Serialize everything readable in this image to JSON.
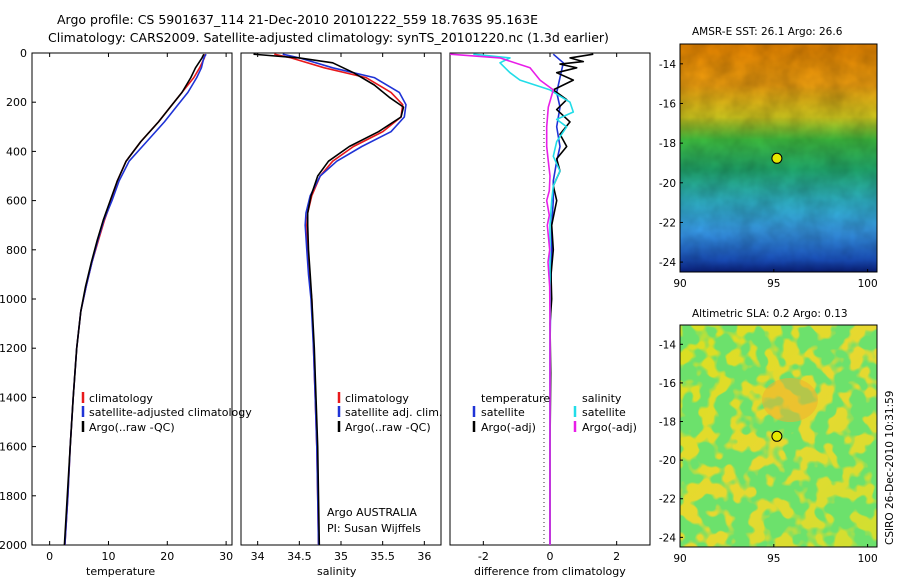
{
  "header": {
    "line1": "Argo profile: CS 5901637_114 21-Dec-2010 20101222_559 18.763S 95.163E",
    "line2": "Climatology: CARS2009. Satellite-adjusted climatology: synTS_20101220.nc (1.3d earlier)"
  },
  "side_label": "CSIRO 26-Dec-2010 10:31:59",
  "colors": {
    "climatology": "#e8191c",
    "satellite": "#1f33d6",
    "argo": "#000000",
    "sat_salinity": "#22dde8",
    "argo_salinity": "#e81ee8"
  },
  "chart_data": [
    {
      "type": "line",
      "id": "temperature",
      "xlabel": "temperature",
      "ylabel": "",
      "xlim": [
        -3,
        31
      ],
      "ylim": [
        2000,
        0
      ],
      "yreverse": true,
      "xticks": [
        0,
        10,
        20,
        30
      ],
      "xticklabels": [
        "0",
        "10",
        "20",
        "30"
      ],
      "yticks": [
        0,
        200,
        400,
        600,
        800,
        1000,
        1200,
        1400,
        1600,
        1800,
        2000
      ],
      "yticklabels": [
        "0",
        "200",
        "400",
        "600",
        "800",
        "1000",
        "1200",
        "1400",
        "1600",
        "1800",
        "2000"
      ],
      "legend": {
        "position": "middle-right",
        "entries": [
          "climatology",
          "satellite-adjusted climatology",
          "Argo(..raw -QC)"
        ]
      },
      "series": [
        {
          "name": "climatology",
          "color": "#e8191c",
          "points": [
            [
              26.4,
              5
            ],
            [
              26.3,
              20
            ],
            [
              25.5,
              60
            ],
            [
              24.5,
              100
            ],
            [
              22.5,
              160
            ],
            [
              20.5,
              220
            ],
            [
              18.5,
              280
            ],
            [
              15.5,
              360
            ],
            [
              13,
              440
            ],
            [
              11.5,
              520
            ],
            [
              10.5,
              600
            ],
            [
              9.3,
              680
            ],
            [
              8.3,
              760
            ],
            [
              7.2,
              850
            ],
            [
              6.2,
              950
            ],
            [
              5.3,
              1050
            ],
            [
              4.6,
              1200
            ],
            [
              4,
              1400
            ],
            [
              3.5,
              1600
            ],
            [
              3.1,
              1800
            ],
            [
              2.6,
              2000
            ]
          ]
        },
        {
          "name": "satellite",
          "color": "#1f33d6",
          "points": [
            [
              26.6,
              5
            ],
            [
              26.2,
              20
            ],
            [
              25.8,
              60
            ],
            [
              25,
              100
            ],
            [
              23.5,
              160
            ],
            [
              21.5,
              220
            ],
            [
              19.5,
              280
            ],
            [
              16.5,
              360
            ],
            [
              13.5,
              440
            ],
            [
              11.8,
              520
            ],
            [
              10.6,
              600
            ],
            [
              9.2,
              680
            ],
            [
              8.2,
              760
            ],
            [
              7.2,
              850
            ],
            [
              6.2,
              950
            ],
            [
              5.3,
              1050
            ],
            [
              4.6,
              1200
            ],
            [
              4,
              1400
            ],
            [
              3.5,
              1600
            ],
            [
              3.1,
              1800
            ],
            [
              2.6,
              2000
            ]
          ]
        },
        {
          "name": "Argo",
          "color": "#000000",
          "points": [
            [
              26.2,
              5
            ],
            [
              25.9,
              20
            ],
            [
              24.8,
              60
            ],
            [
              24,
              100
            ],
            [
              22.5,
              160
            ],
            [
              20.5,
              220
            ],
            [
              18.5,
              280
            ],
            [
              15.5,
              360
            ],
            [
              13,
              440
            ],
            [
              11.5,
              520
            ],
            [
              10.3,
              600
            ],
            [
              9.1,
              680
            ],
            [
              8.1,
              760
            ],
            [
              7.1,
              850
            ],
            [
              6.1,
              950
            ],
            [
              5.3,
              1050
            ],
            [
              4.6,
              1200
            ],
            [
              4,
              1400
            ],
            [
              3.5,
              1600
            ],
            [
              3,
              1800
            ],
            [
              2.5,
              2000
            ]
          ]
        }
      ]
    },
    {
      "type": "line",
      "id": "salinity",
      "xlabel": "salinity",
      "xlim": [
        33.8,
        36.2
      ],
      "ylim": [
        2000,
        0
      ],
      "yreverse": true,
      "xticks": [
        34,
        34.5,
        35,
        35.5,
        36
      ],
      "xticklabels": [
        "34",
        "34.5",
        "35",
        "35.5",
        "36"
      ],
      "legend": {
        "position": "middle-right",
        "entries": [
          "climatology",
          "satellite adj. clim.",
          "Argo(..raw -QC)"
        ]
      },
      "annotation": [
        "Argo AUSTRALIA",
        "PI: Susan Wijffels"
      ],
      "series": [
        {
          "name": "climatology",
          "color": "#e8191c",
          "points": [
            [
              34.2,
              5
            ],
            [
              34.4,
              20
            ],
            [
              34.8,
              60
            ],
            [
              35.3,
              100
            ],
            [
              35.6,
              160
            ],
            [
              35.74,
              210
            ],
            [
              35.72,
              260
            ],
            [
              35.5,
              320
            ],
            [
              35.15,
              380
            ],
            [
              34.9,
              440
            ],
            [
              34.75,
              500
            ],
            [
              34.65,
              580
            ],
            [
              34.6,
              650
            ],
            [
              34.59,
              700
            ],
            [
              34.6,
              800
            ],
            [
              34.62,
              900
            ],
            [
              34.65,
              1000
            ],
            [
              34.67,
              1200
            ],
            [
              34.69,
              1400
            ],
            [
              34.71,
              1600
            ],
            [
              34.72,
              1800
            ],
            [
              34.73,
              2000
            ]
          ]
        },
        {
          "name": "satellite",
          "color": "#1f33d6",
          "points": [
            [
              34.3,
              5
            ],
            [
              34.5,
              20
            ],
            [
              34.9,
              60
            ],
            [
              35.4,
              100
            ],
            [
              35.7,
              160
            ],
            [
              35.78,
              210
            ],
            [
              35.76,
              260
            ],
            [
              35.6,
              320
            ],
            [
              35.25,
              380
            ],
            [
              34.95,
              440
            ],
            [
              34.75,
              500
            ],
            [
              34.63,
              580
            ],
            [
              34.58,
              650
            ],
            [
              34.57,
              700
            ],
            [
              34.59,
              800
            ],
            [
              34.61,
              900
            ],
            [
              34.64,
              1000
            ],
            [
              34.67,
              1200
            ],
            [
              34.69,
              1400
            ],
            [
              34.71,
              1600
            ],
            [
              34.72,
              1800
            ],
            [
              34.73,
              2000
            ]
          ]
        },
        {
          "name": "Argo",
          "color": "#000000",
          "points": [
            [
              33.95,
              5
            ],
            [
              34.5,
              20
            ],
            [
              34.9,
              40
            ],
            [
              35.15,
              80
            ],
            [
              35.4,
              130
            ],
            [
              35.58,
              180
            ],
            [
              35.75,
              220
            ],
            [
              35.72,
              260
            ],
            [
              35.45,
              320
            ],
            [
              35.1,
              380
            ],
            [
              34.85,
              440
            ],
            [
              34.72,
              500
            ],
            [
              34.64,
              580
            ],
            [
              34.6,
              650
            ],
            [
              34.6,
              700
            ],
            [
              34.61,
              800
            ],
            [
              34.63,
              900
            ],
            [
              34.65,
              1000
            ],
            [
              34.68,
              1200
            ],
            [
              34.7,
              1400
            ],
            [
              34.72,
              1600
            ],
            [
              34.73,
              1800
            ],
            [
              34.74,
              2000
            ]
          ]
        }
      ]
    },
    {
      "type": "line",
      "id": "difference",
      "xlabel": "difference from climatology",
      "xlim": [
        -3,
        3
      ],
      "ylim": [
        2000,
        0
      ],
      "yreverse": true,
      "xticks": [
        -2,
        0,
        2
      ],
      "xticklabels": [
        "-2",
        "0",
        "2"
      ],
      "legend": {
        "position": "middle-right",
        "headers": [
          "temperature",
          "salinity"
        ],
        "entries": [
          "satellite",
          "Argo(-adj)",
          "satellite",
          "Argo(-adj)"
        ]
      },
      "series": [
        {
          "name": "temperature satellite",
          "color": "#1f33d6",
          "points": [
            [
              0.1,
              5
            ],
            [
              0.4,
              40
            ],
            [
              0.3,
              100
            ],
            [
              0.2,
              160
            ],
            [
              0.3,
              220
            ],
            [
              0.2,
              300
            ],
            [
              0.3,
              380
            ],
            [
              0.2,
              440
            ],
            [
              0.1,
              520
            ],
            [
              0.1,
              600
            ],
            [
              0.05,
              700
            ],
            [
              0.05,
              800
            ],
            [
              0.02,
              1000
            ],
            [
              0,
              1200
            ],
            [
              0,
              1500
            ],
            [
              0,
              1800
            ],
            [
              0,
              2000
            ]
          ]
        },
        {
          "name": "Argo(-adj)",
          "color": "#000000",
          "points": [
            [
              1.3,
              5
            ],
            [
              0.6,
              20
            ],
            [
              1,
              35
            ],
            [
              0.3,
              45
            ],
            [
              0.8,
              60
            ],
            [
              0.2,
              80
            ],
            [
              0.7,
              110
            ],
            [
              0.1,
              150
            ],
            [
              0.5,
              190
            ],
            [
              0.2,
              230
            ],
            [
              0.6,
              280
            ],
            [
              0.3,
              330
            ],
            [
              0.5,
              380
            ],
            [
              0.2,
              430
            ],
            [
              0.3,
              480
            ],
            [
              0.1,
              540
            ],
            [
              0.2,
              600
            ],
            [
              0.05,
              700
            ],
            [
              0.1,
              800
            ],
            [
              0.03,
              900
            ],
            [
              0.05,
              1000
            ],
            [
              0,
              1100
            ],
            [
              0.02,
              1300
            ],
            [
              0,
              1600
            ],
            [
              0,
              2000
            ]
          ]
        },
        {
          "name": "salinity satellite",
          "color": "#22dde8",
          "points": [
            [
              -2.3,
              5
            ],
            [
              -1.2,
              20
            ],
            [
              -1.5,
              40
            ],
            [
              -1.2,
              80
            ],
            [
              -0.9,
              110
            ],
            [
              0,
              150
            ],
            [
              0.6,
              200
            ],
            [
              0.7,
              240
            ],
            [
              0.2,
              270
            ],
            [
              0.5,
              300
            ],
            [
              0.2,
              360
            ],
            [
              0.1,
              420
            ],
            [
              0.3,
              480
            ],
            [
              0.1,
              540
            ],
            [
              0.05,
              600
            ],
            [
              0,
              700
            ],
            [
              0,
              900
            ],
            [
              0,
              1200
            ],
            [
              0,
              1600
            ],
            [
              0,
              2000
            ]
          ]
        },
        {
          "name": "salinity Argo(-adj)",
          "color": "#e81ee8",
          "points": [
            [
              -3,
              5
            ],
            [
              -1.5,
              20
            ],
            [
              -0.6,
              60
            ],
            [
              -0.3,
              110
            ],
            [
              0.1,
              150
            ],
            [
              -0.05,
              220
            ],
            [
              -0.1,
              300
            ],
            [
              -0.1,
              380
            ],
            [
              -0.05,
              440
            ],
            [
              0,
              500
            ],
            [
              -0.02,
              560
            ],
            [
              -0.1,
              600
            ],
            [
              -0.02,
              660
            ],
            [
              -0.08,
              700
            ],
            [
              -0.01,
              800
            ],
            [
              -0.06,
              850
            ],
            [
              -0.01,
              950
            ],
            [
              0,
              1100
            ],
            [
              0,
              1400
            ],
            [
              0,
              1800
            ],
            [
              0,
              2000
            ]
          ]
        }
      ]
    },
    {
      "type": "heatmap",
      "id": "amsr_sst",
      "title": "AMSR-E SST: 26.1 Argo: 26.6",
      "xlim": [
        90,
        100.5
      ],
      "ylim": [
        -24.5,
        -13
      ],
      "xticks": [
        90,
        95,
        100
      ],
      "xticklabels": [
        "90",
        "95",
        "100"
      ],
      "yticks": [
        -14,
        -16,
        -18,
        -20,
        -22,
        -24
      ],
      "yticklabels": [
        "-14",
        "-16",
        "-18",
        "-20",
        "-22",
        "-24"
      ],
      "marker": {
        "lon": 95.163,
        "lat": -18.763
      }
    },
    {
      "type": "heatmap",
      "id": "altimetric_sla",
      "title": "Altimetric SLA: 0.2 Argo: 0.13",
      "xlim": [
        90,
        100.5
      ],
      "ylim": [
        -24.5,
        -13
      ],
      "xticks": [
        90,
        95,
        100
      ],
      "xticklabels": [
        "90",
        "95",
        "100"
      ],
      "yticks": [
        -14,
        -16,
        -18,
        -20,
        -22,
        -24
      ],
      "yticklabels": [
        "-14",
        "-16",
        "-18",
        "-20",
        "-22",
        "-24"
      ],
      "marker": {
        "lon": 95.163,
        "lat": -18.763
      }
    }
  ]
}
